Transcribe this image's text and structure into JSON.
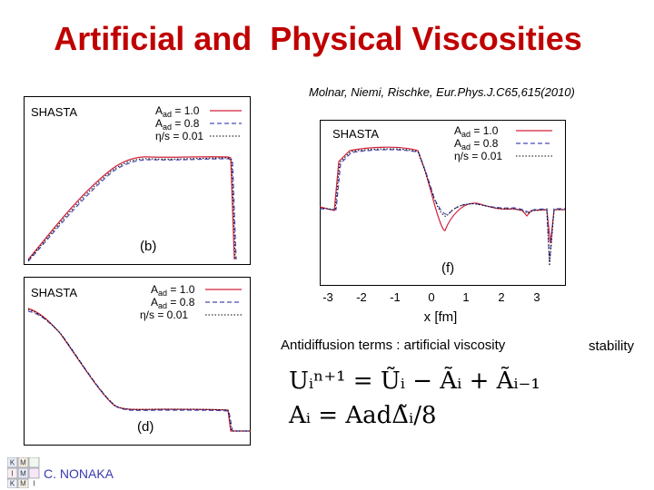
{
  "title": "Artificial and  Physical Viscosities",
  "citation": "Molnar, Niemi, Rischke, Eur.Phys.J.C65,615(2010)",
  "caption": "Antidiffusion terms : artificial viscosity",
  "stability": "stability",
  "author": "C. NONAKA",
  "logo_letters": [
    "K",
    "M",
    "I",
    "M",
    "K",
    "M",
    "I"
  ],
  "panels": {
    "b": {
      "method": "SHASTA",
      "tag": "(b)",
      "legend": [
        "A",
        "ad",
        " = 1.0",
        "A",
        "ad",
        " = 0.8",
        "η/s = 0.01"
      ]
    },
    "d": {
      "method": "SHASTA",
      "tag": "(d)",
      "legend": [
        "A",
        "ad",
        " = 1.0",
        "A",
        "ad",
        " = 0.8",
        "η/s = 0.01"
      ]
    },
    "f": {
      "method": "SHASTA",
      "tag": "(f)",
      "xlabel": "x [fm]",
      "xticks": [
        "-3",
        "-2",
        "-1",
        "0",
        "1",
        "2",
        "3"
      ],
      "legend": [
        "A",
        "ad",
        " = 1.0",
        "A",
        "ad",
        " = 0.8",
        "η/s = 0.01"
      ]
    }
  },
  "formula": {
    "line1": "Uᵢⁿ⁺¹ = Ũᵢ − Ãᵢ + Ãᵢ₋₁",
    "line2": "Aᵢ = AadΔ̃ᵢ/8"
  },
  "colors": {
    "title": "#c00000",
    "series1": "#d0203a",
    "series2": "#4a4ab8",
    "series3": "#000000"
  }
}
